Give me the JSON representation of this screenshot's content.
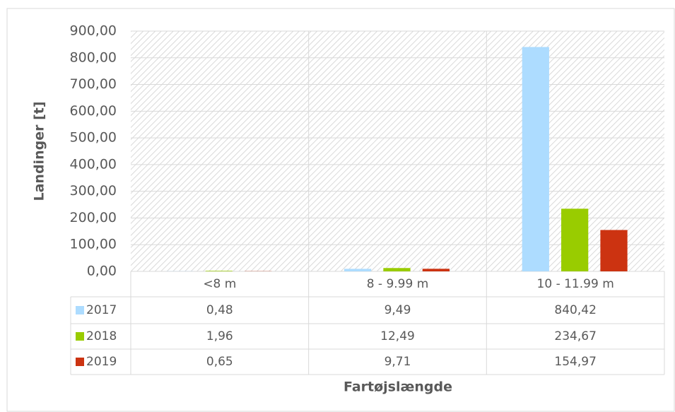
{
  "chart_data": {
    "type": "bar",
    "categories": [
      "<8 m",
      "8 - 9.99 m",
      "10 - 11.99 m"
    ],
    "series": [
      {
        "name": "2017",
        "color": "#addcff",
        "values": [
          0.48,
          9.49,
          840.42
        ],
        "value_labels": [
          "0,48",
          "9,49",
          "840,42"
        ]
      },
      {
        "name": "2018",
        "color": "#99cc00",
        "values": [
          1.96,
          12.49,
          234.67
        ],
        "value_labels": [
          "1,96",
          "12,49",
          "234,67"
        ]
      },
      {
        "name": "2019",
        "color": "#cc3311",
        "values": [
          0.65,
          9.71,
          154.97
        ],
        "value_labels": [
          "0,65",
          "9,71",
          "154,97"
        ]
      }
    ],
    "ylim": [
      0,
      900
    ],
    "yticks": [
      {
        "value": 0,
        "label": "0,00"
      },
      {
        "value": 100,
        "label": "100,00"
      },
      {
        "value": 200,
        "label": "200,00"
      },
      {
        "value": 300,
        "label": "300,00"
      },
      {
        "value": 400,
        "label": "400,00"
      },
      {
        "value": 500,
        "label": "500,00"
      },
      {
        "value": 600,
        "label": "600,00"
      },
      {
        "value": 700,
        "label": "700,00"
      },
      {
        "value": 800,
        "label": "800,00"
      },
      {
        "value": 900,
        "label": "900,00"
      }
    ],
    "ylabel": "Landinger [t]",
    "xlabel": "Fartøjslængde",
    "grid": true
  }
}
